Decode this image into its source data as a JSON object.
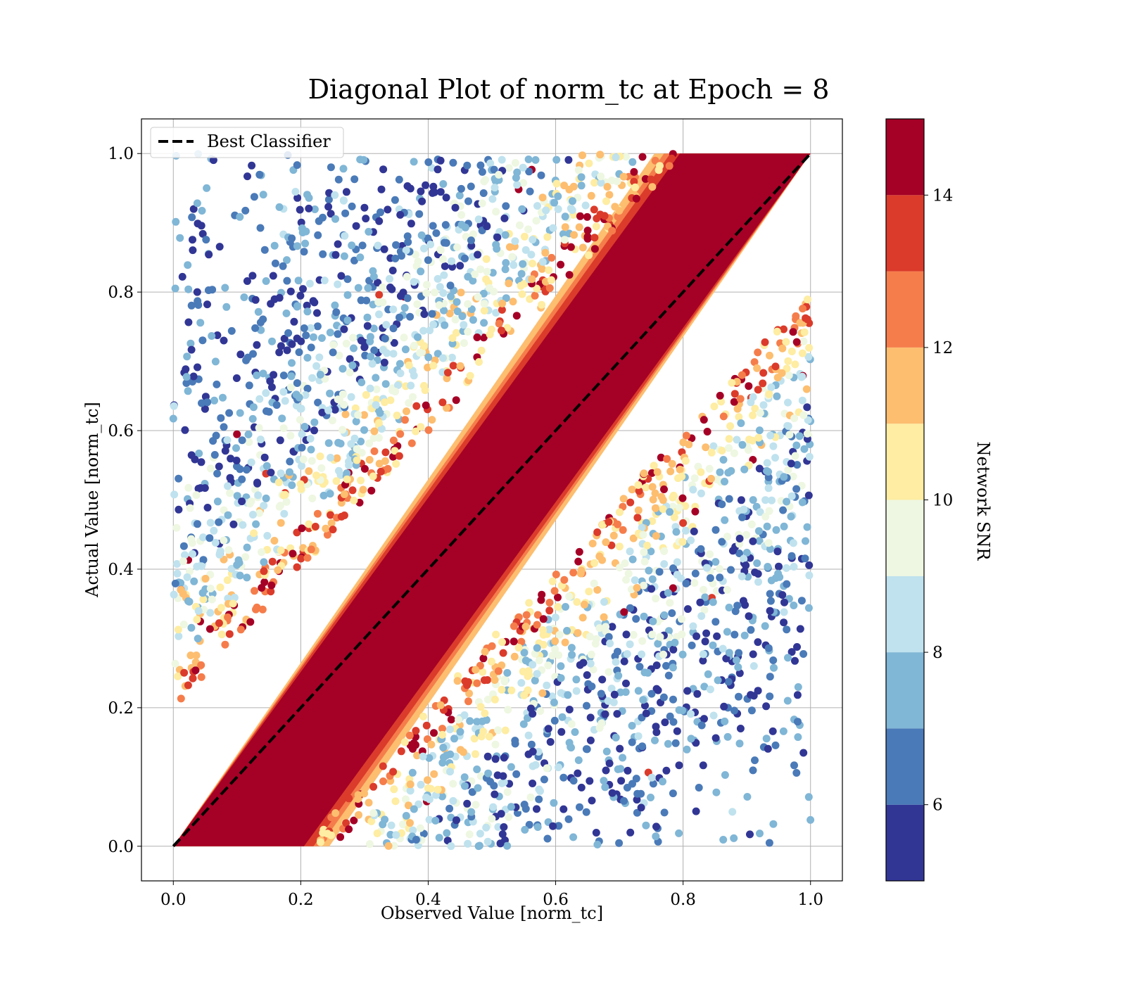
{
  "chart_data": {
    "type": "scatter",
    "title": "Diagonal Plot of norm_tc at Epoch = 8",
    "xlabel": "Observed Value [norm_tc]",
    "ylabel": "Actual Value [norm_tc]",
    "xlim": [
      -0.05,
      1.05
    ],
    "ylim": [
      -0.05,
      1.05
    ],
    "x_ticks": [
      "0.0",
      "0.2",
      "0.4",
      "0.6",
      "0.8",
      "1.0"
    ],
    "y_ticks": [
      "0.0",
      "0.2",
      "0.4",
      "0.6",
      "0.8",
      "1.0"
    ],
    "grid": true,
    "legend": {
      "placement": "upper-left",
      "entries": [
        {
          "label": "Best Classifier",
          "style": "black dashed line"
        }
      ]
    },
    "reference_line": {
      "name": "Best Classifier",
      "x": [
        0.0,
        1.0
      ],
      "y": [
        0.0,
        1.0
      ],
      "color": "#000000",
      "dash": true
    },
    "points_description_note": null,
    "colorbar": {
      "label": "Network SNR",
      "range": [
        5,
        15
      ],
      "ticks": [
        "6",
        "8",
        "10",
        "12",
        "14"
      ],
      "bands": [
        {
          "from": 5,
          "to": 6,
          "color": "#313695"
        },
        {
          "from": 6,
          "to": 7,
          "color": "#4a7ab8"
        },
        {
          "from": 7,
          "to": 8,
          "color": "#80b6d6"
        },
        {
          "from": 8,
          "to": 9,
          "color": "#bfe2ee"
        },
        {
          "from": 9,
          "to": 10,
          "color": "#eef7e1"
        },
        {
          "from": 10,
          "to": 11,
          "color": "#feeda2"
        },
        {
          "from": 11,
          "to": 12,
          "color": "#fdbe70"
        },
        {
          "from": 12,
          "to": 13,
          "color": "#f57d4b"
        },
        {
          "from": 13,
          "to": 14,
          "color": "#db3b2b"
        },
        {
          "from": 14,
          "to": 15,
          "color": "#a50026"
        }
      ]
    },
    "series": [
      {
        "description": "scatter of observed vs actual norm_tc, colored by Network SNR",
        "snr_structure": [
          {
            "snr": 15,
            "region": "within ±0.22 of diagonal (dense band)"
          },
          {
            "snr": 11,
            "region": "edge of diagonal band"
          },
          {
            "snr": 8,
            "region": "0.25–0.45 from diagonal"
          },
          {
            "snr": 5,
            "region": "far from diagonal"
          }
        ],
        "x_range": [
          0.0,
          1.0
        ],
        "y_range": [
          0.0,
          1.0
        ]
      }
    ]
  }
}
